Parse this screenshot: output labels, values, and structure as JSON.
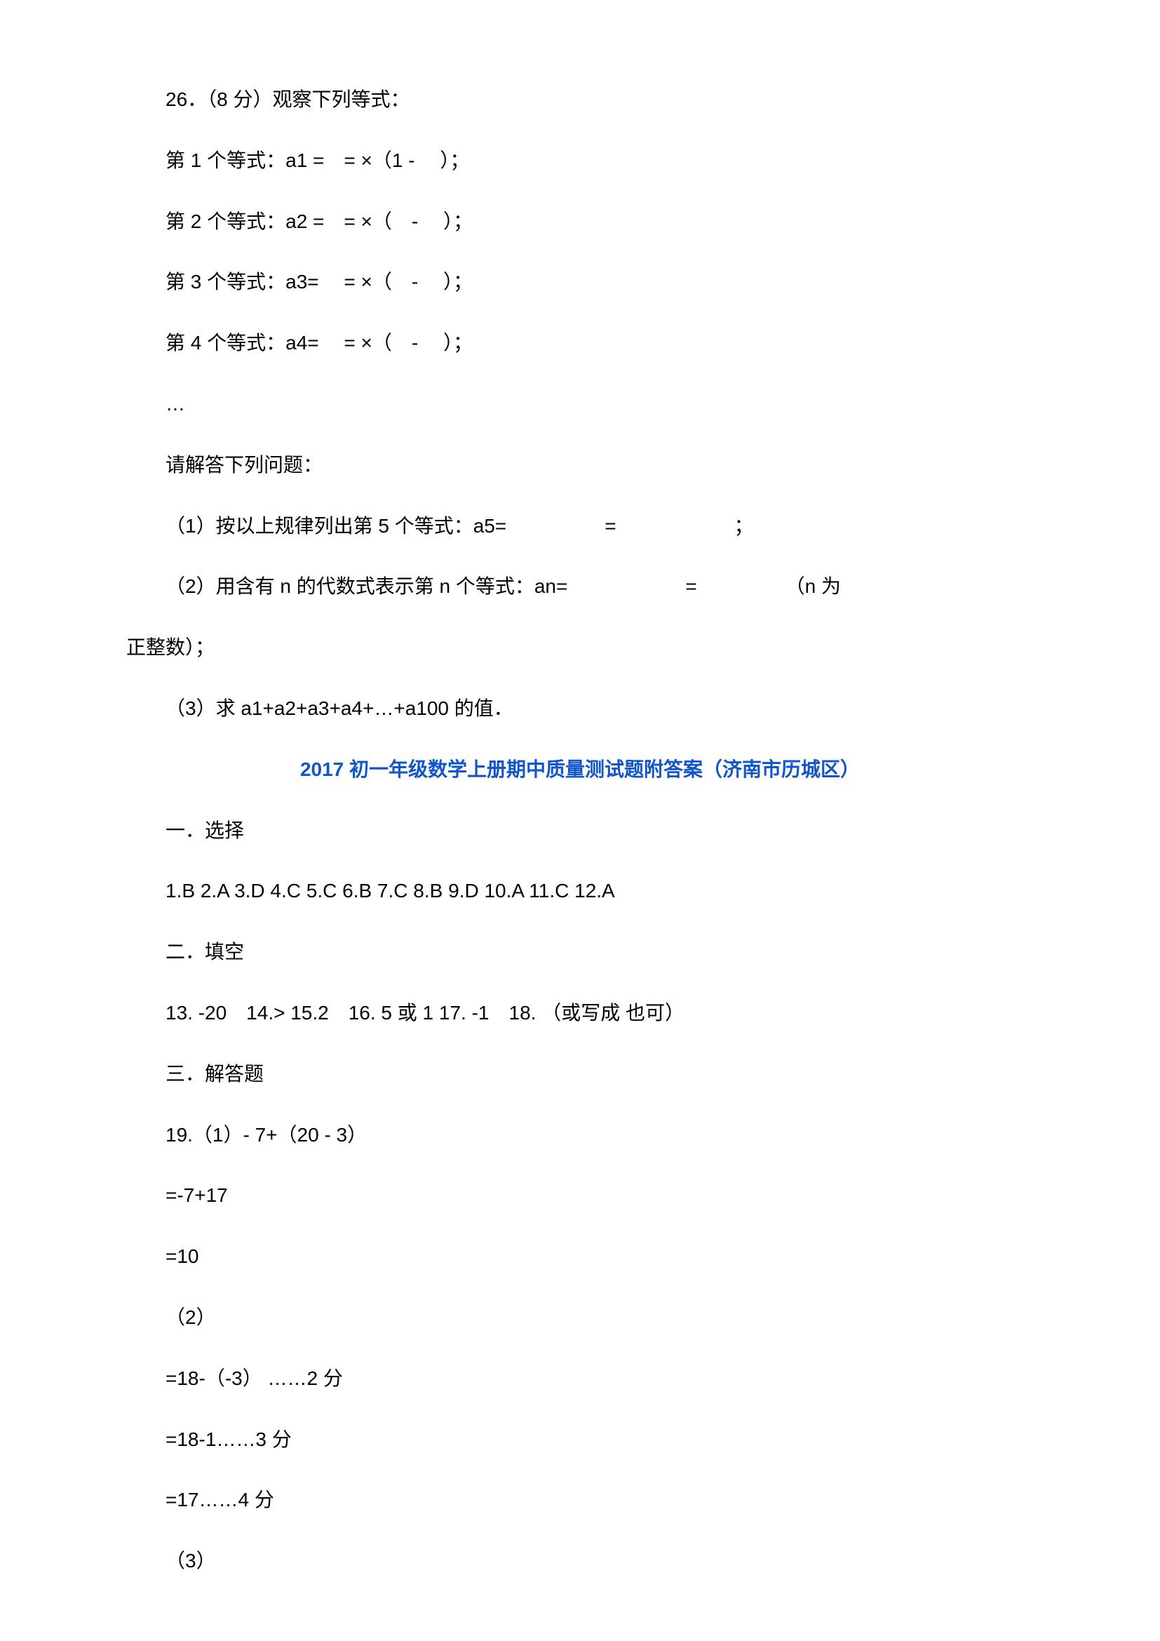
{
  "q26": {
    "title": "26．（8 分）观察下列等式：",
    "eq1": "第 1 个等式：a1 =　= ×（1 - 　）；",
    "eq2": "第 2 个等式：a2 =　= ×（　- 　）；",
    "eq3": "第 3 个等式：a3= 　= ×（　- 　）；",
    "eq4": "第 4 个等式：a4= 　= ×（　- 　）；",
    "ellipsis": "…",
    "prompt": "请解答下列问题：",
    "sub1": "（1）按以上规律列出第 5 个等式：a5=　　　　　=　　　　　　；",
    "sub2_line1": "（2）用含有 n 的代数式表示第 n 个等式：an=　　　　　　=　　　　　（n 为",
    "sub2_line2": "正整数）；",
    "sub3": "（3）求 a1+a2+a3+a4+…+a100 的值．"
  },
  "heading": "2017 初一年级数学上册期中质量测试题附答案（济南市历城区）",
  "section1": {
    "title": "一．选择",
    "answers": "1.B  2.A  3.D  4.C  5.C  6.B  7.C  8.B  9.D  10.A  11.C  12.A"
  },
  "section2": {
    "title": "二．填空",
    "answers": "13. -20　14.>  15.2　16. 5 或 1  17. -1　18. （或写成 也可）"
  },
  "section3": {
    "title": "三．解答题",
    "q19_1": "19.（1）- 7+（20 - 3）",
    "q19_1_step1": "=-7+17",
    "q19_1_step2": "=10",
    "q19_2": "（2）",
    "q19_2_step1": "=18-（-3） ……2 分",
    "q19_2_step2": "=18-1……3 分",
    "q19_2_step3": "=17……4 分",
    "q19_3": "（3）"
  }
}
